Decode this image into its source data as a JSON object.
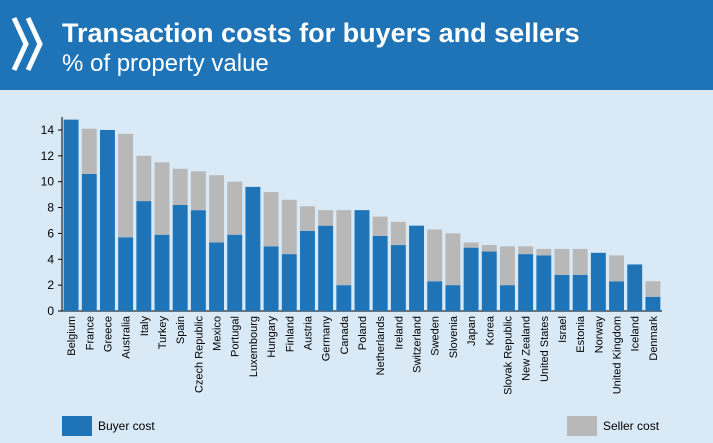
{
  "header": {
    "title": "Transaction costs for buyers and sellers",
    "subtitle": "% of property value"
  },
  "colors": {
    "header_bg": "#1f74b8",
    "panel_bg": "#d9e9f5",
    "buyer": "#1f74b8",
    "seller": "#b8b8b8"
  },
  "legend": {
    "buyer_label": "Buyer cost",
    "seller_label": "Seller cost"
  },
  "chart_data": {
    "type": "bar",
    "stacked": true,
    "categories": [
      "Belgium",
      "France",
      "Greece",
      "Australia",
      "Italy",
      "Turkey",
      "Spain",
      "Czech Republic",
      "Mexico",
      "Portugal",
      "Luxembourg",
      "Hungary",
      "Finland",
      "Austria",
      "Germany",
      "Canada",
      "Poland",
      "Netherlands",
      "Ireland",
      "Switzerland",
      "Sweden",
      "Slovenia",
      "Japan",
      "Korea",
      "Slovak Republic",
      "New Zealand",
      "United States",
      "Israel",
      "Estonia",
      "Norway",
      "United Kingdom",
      "Iceland",
      "Denmark"
    ],
    "series": [
      {
        "name": "Buyer cost",
        "color": "#1f74b8",
        "values": [
          14.8,
          10.6,
          14.0,
          5.7,
          8.5,
          5.9,
          8.2,
          7.8,
          5.3,
          5.9,
          9.6,
          5.0,
          4.4,
          6.2,
          6.6,
          2.0,
          7.8,
          5.8,
          5.1,
          6.6,
          2.3,
          2.0,
          4.9,
          4.6,
          2.0,
          4.4,
          4.3,
          2.8,
          2.8,
          4.5,
          2.3,
          3.6,
          1.1
        ]
      },
      {
        "name": "Seller cost",
        "color": "#b8b8b8",
        "values": [
          0,
          3.5,
          0,
          8.0,
          3.5,
          5.6,
          2.8,
          3.0,
          5.2,
          4.1,
          0,
          4.2,
          4.2,
          1.9,
          1.2,
          5.8,
          0,
          1.5,
          1.8,
          0,
          4.0,
          4.0,
          0.4,
          0.5,
          3.0,
          0.6,
          0.5,
          2.0,
          2.0,
          0,
          2.0,
          0,
          1.2
        ]
      }
    ],
    "yticks": [
      0,
      2,
      4,
      6,
      8,
      10,
      12,
      14
    ],
    "ylim": [
      0,
      15
    ],
    "grid": false,
    "legend_position": "bottom"
  }
}
